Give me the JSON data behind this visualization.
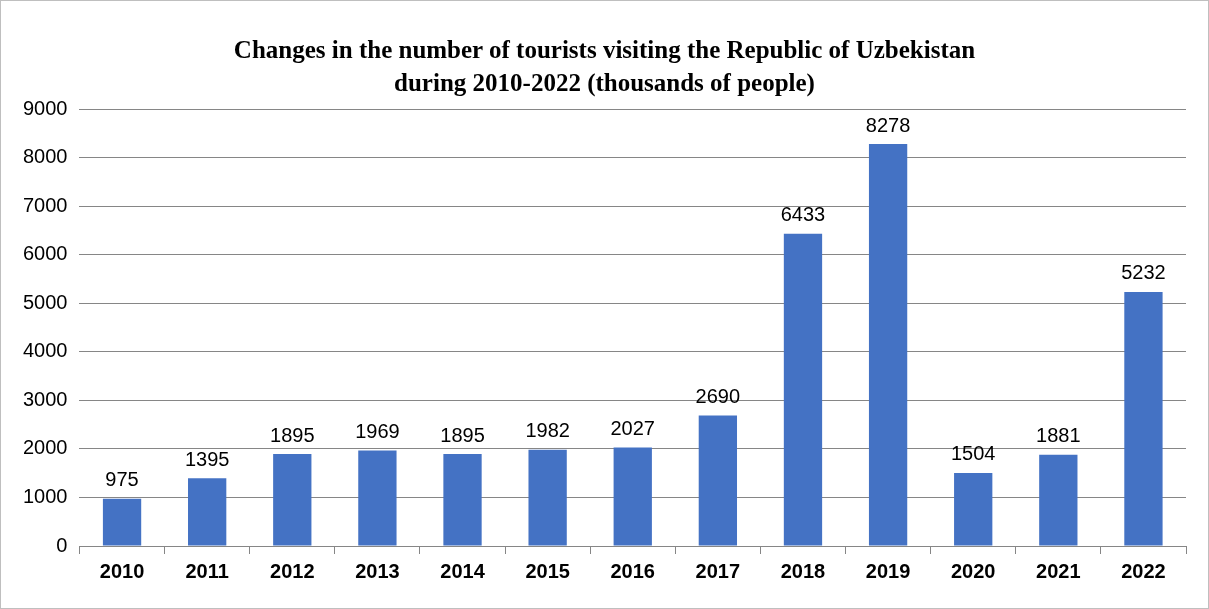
{
  "chart_data": {
    "type": "bar",
    "title": "Changes in the number of tourists visiting the Republic of Uzbekistan\nduring 2010-2022 (thousands of people)",
    "categories": [
      "2010",
      "2011",
      "2012",
      "2013",
      "2014",
      "2015",
      "2016",
      "2017",
      "2018",
      "2019",
      "2020",
      "2021",
      "2022"
    ],
    "values": [
      975,
      1395,
      1895,
      1969,
      1895,
      1982,
      2027,
      2690,
      6433,
      8278,
      1504,
      1881,
      5232
    ],
    "color": "#4472c4",
    "ylim": [
      0,
      9000
    ],
    "yticks": [
      0,
      1000,
      2000,
      3000,
      4000,
      5000,
      6000,
      7000,
      8000,
      9000
    ],
    "grid": "y",
    "data_labels": true,
    "legend": false
  }
}
